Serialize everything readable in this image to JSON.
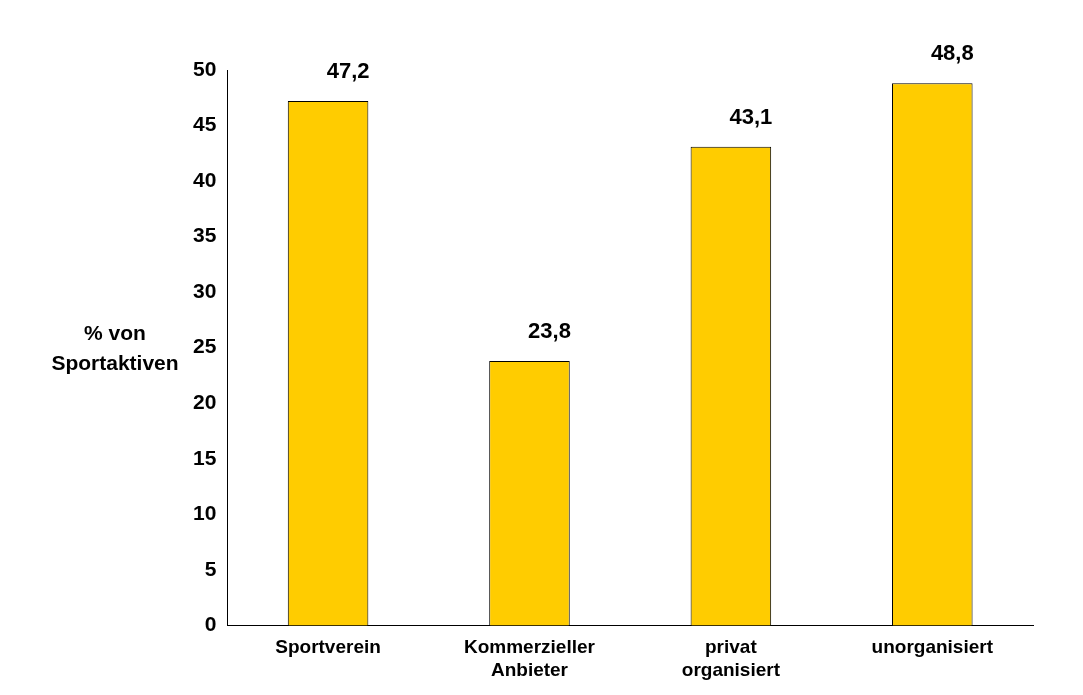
{
  "chart_data": {
    "type": "bar",
    "ylabel": "% von Sportaktiven",
    "categories": [
      "Sportverein",
      "Kommerzieller Anbieter",
      "privat organisiert",
      "unorganisiert"
    ],
    "values": [
      47.2,
      23.8,
      43.1,
      48.8
    ],
    "value_labels": [
      "47,2",
      "23,8",
      "43,1",
      "48,8"
    ],
    "color": "#ffcc00",
    "ylim": [
      0,
      50
    ],
    "yticks": [
      0,
      5,
      10,
      15,
      20,
      25,
      30,
      35,
      40,
      45,
      50
    ],
    "grid": false,
    "legend": false
  }
}
